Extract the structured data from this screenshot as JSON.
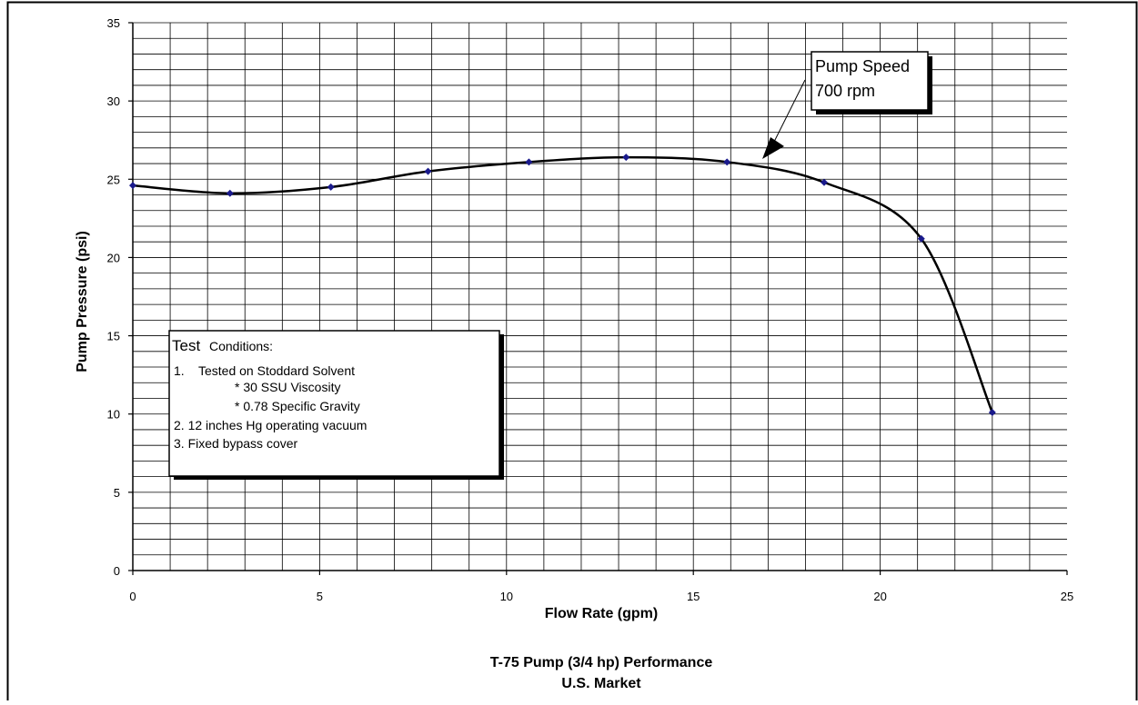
{
  "chart_data": {
    "type": "scatter",
    "title": "T-75 Pump (3/4 hp) Performance",
    "subtitle": "U.S. Market",
    "xlabel": "Flow Rate (gpm)",
    "ylabel": "Pump Pressure (psi)",
    "xlim": [
      0,
      25
    ],
    "ylim": [
      0,
      35
    ],
    "xticks": [
      0,
      5,
      10,
      15,
      20,
      25
    ],
    "yticks": [
      0,
      5,
      10,
      15,
      20,
      25,
      30,
      35
    ],
    "grid": true,
    "series": [
      {
        "marker_color": "#1a1a8c",
        "line_color": "#000000",
        "x": [
          0,
          2.6,
          5.3,
          7.9,
          10.6,
          13.2,
          15.9,
          18.5,
          21.1,
          23.0
        ],
        "y": [
          24.6,
          24.1,
          24.5,
          25.5,
          26.1,
          26.4,
          26.1,
          24.8,
          21.2,
          10.1
        ]
      }
    ],
    "annotations": {
      "callout_line1": "Pump Speed",
      "callout_line2": "700 rpm",
      "conditions": {
        "heading_a": "Test",
        "heading_b": "Conditions:",
        "item1_num": "1.",
        "item1": "Tested on Stoddard Solvent",
        "item1a": "*   30 SSU Viscosity",
        "item1b": "*   0.78 Specific Gravity",
        "item2": "2.  12 inches  Hg operating vacuum",
        "item3": "3.  Fixed bypass cover"
      }
    }
  }
}
